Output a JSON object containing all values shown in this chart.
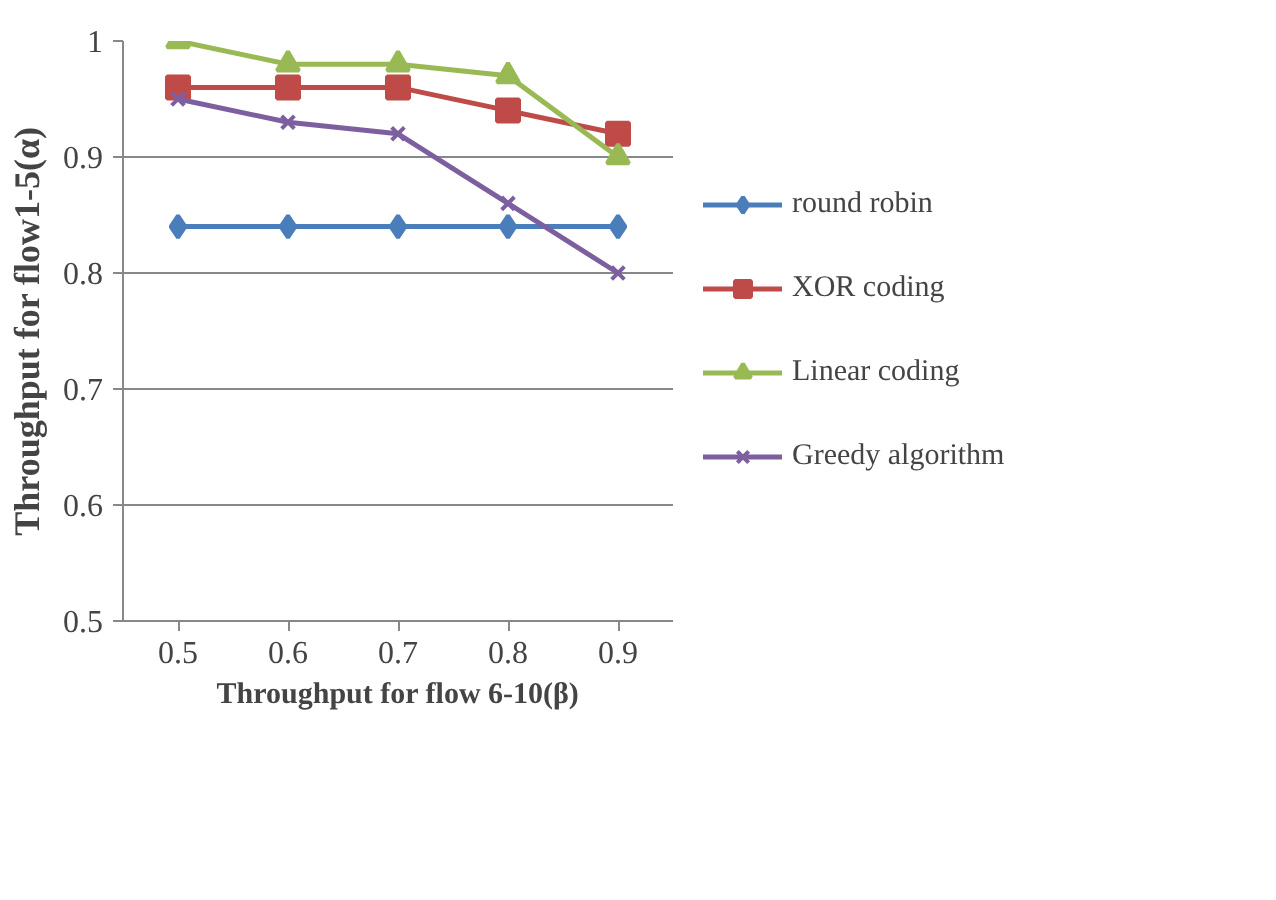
{
  "chart_data": {
    "type": "line",
    "xlabel": "Throughput for flow 6-10(β)",
    "ylabel": "Throughput for flow1-5(α)",
    "categories": [
      "0.5",
      "0.6",
      "0.7",
      "0.8",
      "0.9"
    ],
    "series": [
      {
        "name": "round robin",
        "color": "#4a7ebb",
        "marker": "diamond",
        "values": [
          0.84,
          0.84,
          0.84,
          0.84,
          0.84
        ]
      },
      {
        "name": "XOR coding",
        "color": "#be4b48",
        "marker": "square",
        "values": [
          0.96,
          0.96,
          0.96,
          0.94,
          0.92
        ]
      },
      {
        "name": "Linear coding",
        "color": "#98b954",
        "marker": "triangle",
        "values": [
          1.0,
          0.98,
          0.98,
          0.97,
          0.9
        ]
      },
      {
        "name": "Greedy algorithm",
        "color": "#7d5fa0",
        "marker": "cross",
        "values": [
          0.95,
          0.93,
          0.92,
          0.86,
          0.8
        ]
      }
    ],
    "ylim": [
      0.5,
      1.0
    ],
    "yticks": [
      0.5,
      0.6,
      0.7,
      0.8,
      0.9,
      1
    ],
    "grid": "y",
    "legend": "right",
    "line_style": "solid"
  }
}
